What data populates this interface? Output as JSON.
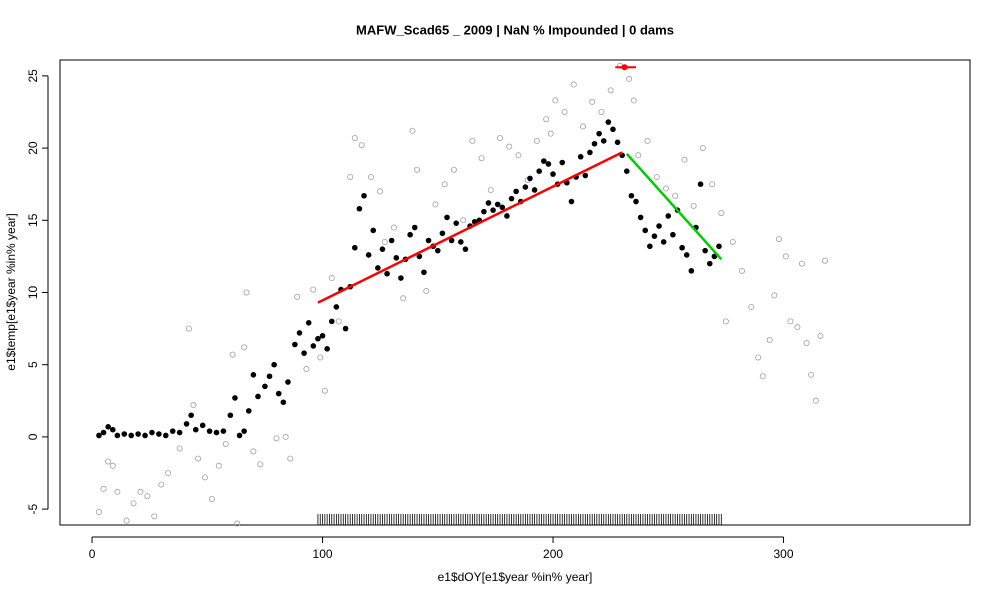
{
  "chart_data": {
    "type": "scatter",
    "title": "MAFW_Scad65 _ 2009   |   NaN  % Impounded |  0  dams",
    "x_label": "e1$dOY[e1$year %in% year]",
    "y_label": "e1$temp[e1$year %in% year]",
    "xlim": [
      -13.9,
      380.9
    ],
    "ylim": [
      -6.1,
      26.1
    ],
    "xticks": [
      0,
      100,
      200,
      300
    ],
    "yticks": [
      -5,
      0,
      5,
      10,
      15,
      20,
      25
    ],
    "series": [
      {
        "color": "#a0a0a0",
        "marker": "open",
        "x": [
          3,
          5,
          7,
          9,
          11,
          15,
          18,
          21,
          24,
          27,
          30,
          33,
          38,
          42,
          44,
          46,
          49,
          52,
          55,
          58,
          61,
          63,
          66,
          67,
          70,
          73,
          80,
          84,
          86,
          89,
          93,
          96,
          99,
          101,
          104,
          107,
          112,
          114,
          117,
          121,
          125,
          127,
          131,
          135,
          139,
          141,
          145,
          149,
          153,
          157,
          161,
          165,
          169,
          173,
          177,
          181,
          185,
          189,
          193,
          197,
          199,
          201,
          205,
          209,
          213,
          217,
          221,
          225,
          229,
          233,
          235,
          237,
          241,
          245,
          249,
          253,
          257,
          261,
          265,
          269,
          273,
          275,
          278,
          282,
          286,
          289,
          291,
          294,
          296,
          298,
          301,
          303,
          306,
          308,
          310,
          312,
          314,
          316,
          318
        ],
        "values": [
          -5.2,
          -3.6,
          -1.7,
          -2.0,
          -3.8,
          -5.8,
          -4.6,
          -3.8,
          -4.1,
          -5.5,
          -3.3,
          -2.5,
          -0.8,
          7.5,
          2.2,
          -1.5,
          -2.8,
          -4.3,
          -2.0,
          -0.5,
          5.7,
          -6.0,
          6.2,
          10.0,
          -1.0,
          -1.9,
          -0.1,
          0.0,
          -1.5,
          9.7,
          4.7,
          10.2,
          5.5,
          3.2,
          11.0,
          8.0,
          18.0,
          20.7,
          20.2,
          18.0,
          17.0,
          13.5,
          14.5,
          9.6,
          21.2,
          18.5,
          10.1,
          16.1,
          17.5,
          18.5,
          15.0,
          20.5,
          19.3,
          17.1,
          20.7,
          20.1,
          19.5,
          17.8,
          20.5,
          22.0,
          21.0,
          23.3,
          22.5,
          24.4,
          21.5,
          23.2,
          22.5,
          24.0,
          25.7,
          24.8,
          23.3,
          19.5,
          20.5,
          18.0,
          17.2,
          16.7,
          19.2,
          16.0,
          20.0,
          17.5,
          15.5,
          8.0,
          13.5,
          11.5,
          9.0,
          5.5,
          4.2,
          6.7,
          9.8,
          13.7,
          12.5,
          8.0,
          7.6,
          12.0,
          6.5,
          4.3,
          2.5,
          7.0,
          12.2
        ]
      },
      {
        "color": "#000000",
        "marker": "filled",
        "x": [
          3,
          5,
          7,
          9,
          11,
          14,
          17,
          20,
          23,
          26,
          29,
          32,
          35,
          38,
          41,
          43,
          45,
          48,
          51,
          54,
          57,
          60,
          62,
          64,
          66,
          68,
          70,
          72,
          75,
          77,
          79,
          81,
          83,
          85,
          88,
          90,
          92,
          94,
          96,
          98,
          100,
          102,
          104,
          106,
          108,
          110,
          112,
          114,
          116,
          118,
          120,
          122,
          124,
          126,
          128,
          130,
          132,
          134,
          136,
          138,
          140,
          142,
          144,
          146,
          148,
          150,
          152,
          154,
          156,
          158,
          160,
          162,
          164,
          166,
          168,
          170,
          172,
          174,
          176,
          178,
          180,
          182,
          184,
          186,
          188,
          190,
          192,
          194,
          196,
          198,
          200,
          202,
          204,
          206,
          208,
          210,
          212,
          214,
          216,
          218,
          220,
          222,
          224,
          226,
          228,
          230,
          232,
          234,
          236,
          238,
          240,
          242,
          244,
          246,
          248,
          250,
          252,
          254,
          256,
          258,
          260,
          262,
          264,
          266,
          268,
          270,
          272
        ],
        "values": [
          0.1,
          0.3,
          0.7,
          0.5,
          0.1,
          0.2,
          0.1,
          0.2,
          0.1,
          0.3,
          0.2,
          0.1,
          0.4,
          0.3,
          0.9,
          1.5,
          0.5,
          0.8,
          0.4,
          0.3,
          0.4,
          1.5,
          2.7,
          0.1,
          0.4,
          1.8,
          4.3,
          2.8,
          3.5,
          4.2,
          5.0,
          3.0,
          2.4,
          3.8,
          6.4,
          7.2,
          5.8,
          7.9,
          6.3,
          6.8,
          7.0,
          6.1,
          8.0,
          9.0,
          10.2,
          7.5,
          10.4,
          13.1,
          15.8,
          16.7,
          12.6,
          14.3,
          11.7,
          13.0,
          11.3,
          13.6,
          12.4,
          11.0,
          12.3,
          14.0,
          14.5,
          12.5,
          11.4,
          13.6,
          13.2,
          12.9,
          14.1,
          15.2,
          13.6,
          14.8,
          13.5,
          13.0,
          14.6,
          14.9,
          15.0,
          15.6,
          16.2,
          15.7,
          16.1,
          15.9,
          15.3,
          16.5,
          17.0,
          16.3,
          17.3,
          17.9,
          17.1,
          18.4,
          19.1,
          18.9,
          18.2,
          17.5,
          19.0,
          17.6,
          16.3,
          18.0,
          19.4,
          18.1,
          19.7,
          20.3,
          21.0,
          20.5,
          21.8,
          21.3,
          20.4,
          19.5,
          18.4,
          16.7,
          16.3,
          15.2,
          14.3,
          13.2,
          13.9,
          14.6,
          13.5,
          15.3,
          14.0,
          15.7,
          13.1,
          12.6,
          11.5,
          14.5,
          17.5,
          12.9,
          12.0,
          12.5,
          13.2
        ]
      }
    ],
    "lines": [
      {
        "color": "#ff0000",
        "x": [
          98,
          230
        ],
        "values": [
          9.3,
          19.7
        ]
      },
      {
        "color": "#00cc00",
        "x": [
          232,
          273
        ],
        "values": [
          19.6,
          12.3
        ]
      }
    ],
    "peak": {
      "color": "#ff0000",
      "x": 231,
      "value": 25.6,
      "x_range": [
        227,
        236
      ]
    },
    "rug": [
      98,
      99,
      100,
      101,
      102,
      103,
      104,
      105,
      106,
      107,
      108,
      109,
      110,
      111,
      112,
      113,
      114,
      115,
      116,
      117,
      118,
      119,
      120,
      121,
      122,
      123,
      124,
      125,
      126,
      127,
      128,
      129,
      130,
      131,
      132,
      133,
      134,
      135,
      136,
      137,
      138,
      139,
      140,
      141,
      142,
      143,
      144,
      145,
      146,
      147,
      148,
      149,
      150,
      151,
      152,
      153,
      154,
      155,
      156,
      157,
      158,
      159,
      160,
      161,
      162,
      163,
      164,
      165,
      166,
      167,
      168,
      169,
      170,
      171,
      172,
      173,
      174,
      175,
      176,
      177,
      178,
      179,
      180,
      181,
      182,
      183,
      184,
      185,
      186,
      187,
      188,
      189,
      190,
      191,
      192,
      193,
      194,
      195,
      196,
      197,
      198,
      199,
      200,
      201,
      202,
      203,
      204,
      205,
      206,
      207,
      208,
      209,
      210,
      211,
      212,
      213,
      214,
      215,
      216,
      217,
      218,
      219,
      220,
      221,
      222,
      223,
      224,
      225,
      226,
      227,
      228,
      229,
      230,
      231,
      232,
      233,
      234,
      235,
      236,
      237,
      238,
      239,
      240,
      241,
      242,
      243,
      244,
      245,
      246,
      247,
      248,
      249,
      250,
      251,
      252,
      253,
      254,
      255,
      256,
      257,
      258,
      259,
      260,
      261,
      262,
      263,
      264,
      265,
      266,
      267,
      268,
      269,
      270,
      271,
      272,
      273
    ]
  }
}
